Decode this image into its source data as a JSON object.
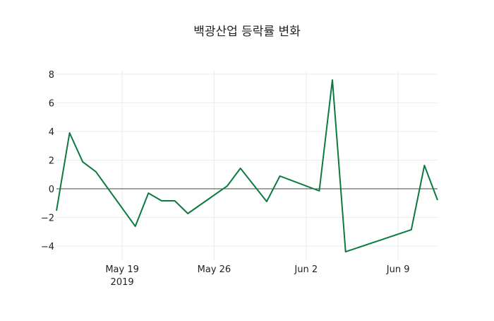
{
  "chart_data": {
    "type": "line",
    "title": "백광산업 등락률 변화",
    "xlabel": "",
    "ylabel": "",
    "x": [
      "2019-05-14",
      "2019-05-15",
      "2019-05-16",
      "2019-05-17",
      "2019-05-20",
      "2019-05-21",
      "2019-05-22",
      "2019-05-23",
      "2019-05-24",
      "2019-05-27",
      "2019-05-28",
      "2019-05-30",
      "2019-05-31",
      "2019-06-03",
      "2019-06-04",
      "2019-06-05",
      "2019-06-10",
      "2019-06-11",
      "2019-06-12"
    ],
    "series": [
      {
        "name": "등락률",
        "color": "#0b7a3e",
        "values": [
          -1.53,
          3.9,
          1.88,
          1.19,
          -2.62,
          -0.3,
          -0.84,
          -0.84,
          -1.73,
          0.2,
          1.43,
          -0.89,
          0.89,
          -0.15,
          7.6,
          -4.4,
          -2.86,
          1.63,
          -0.79
        ]
      }
    ],
    "ylim": [
      -4.6,
      8.6
    ],
    "xlim": [
      "2019-05-14",
      "2019-06-12"
    ],
    "yticks": [
      -4,
      -2,
      0,
      2,
      4,
      6,
      8
    ],
    "ytick_labels": [
      "−4",
      "−2",
      "0",
      "2",
      "4",
      "6",
      "8"
    ],
    "xticks": [
      {
        "date": "2019-05-19",
        "label": "May 19",
        "sublabel": "2019"
      },
      {
        "date": "2019-05-26",
        "label": "May 26",
        "sublabel": ""
      },
      {
        "date": "2019-06-02",
        "label": "Jun 2",
        "sublabel": ""
      },
      {
        "date": "2019-06-09",
        "label": "Jun 9",
        "sublabel": ""
      }
    ],
    "grid": true,
    "zero_line": true
  }
}
